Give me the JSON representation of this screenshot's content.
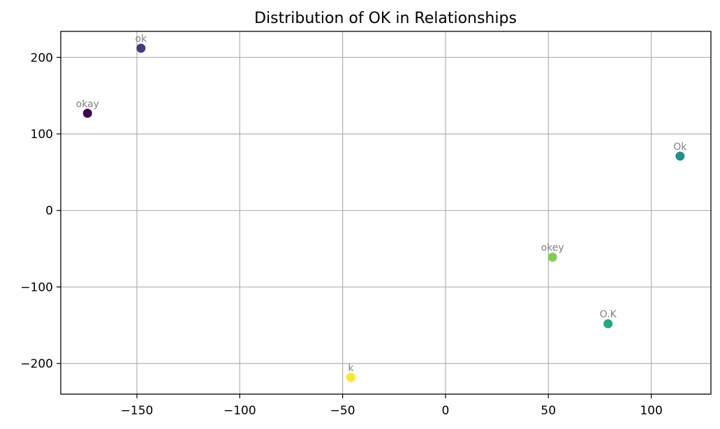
{
  "chart_data": {
    "type": "scatter",
    "title": "Distribution of OK in Relationships",
    "xlabel": "",
    "ylabel": "",
    "xlim": [
      -187,
      129
    ],
    "ylim": [
      -240,
      234
    ],
    "grid": true,
    "xticks": [
      -150,
      -100,
      -50,
      0,
      50,
      100
    ],
    "xtick_labels": [
      "−150",
      "−100",
      "−50",
      "0",
      "50",
      "100"
    ],
    "yticks": [
      -200,
      -100,
      0,
      100,
      200
    ],
    "ytick_labels": [
      "−200",
      "−100",
      "0",
      "100",
      "200"
    ],
    "points": [
      {
        "label": "okay",
        "x": -174,
        "y": 127,
        "color": "#440154"
      },
      {
        "label": "ok",
        "x": -148,
        "y": 212,
        "color": "#443983"
      },
      {
        "label": "Ok",
        "x": 114,
        "y": 71,
        "color": "#21918c"
      },
      {
        "label": "O.K",
        "x": 79,
        "y": -148,
        "color": "#22a884"
      },
      {
        "label": "okey",
        "x": 52,
        "y": -61,
        "color": "#7ad151"
      },
      {
        "label": "k",
        "x": -46,
        "y": -218,
        "color": "#fde725"
      }
    ]
  }
}
